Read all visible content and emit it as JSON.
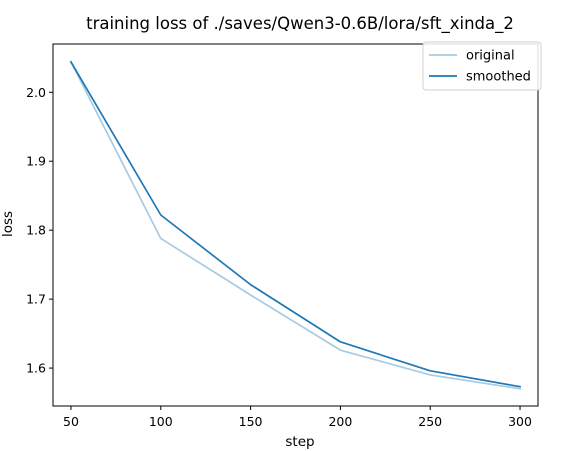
{
  "chart_data": {
    "type": "line",
    "title": "training loss of ./saves/Qwen3-0.6B/lora/sft_xinda_2",
    "xlabel": "step",
    "ylabel": "loss",
    "xlim": [
      40,
      310
    ],
    "ylim": [
      1.545,
      2.07
    ],
    "x_ticks": [
      50,
      100,
      150,
      200,
      250,
      300
    ],
    "y_ticks": [
      1.6,
      1.7,
      1.8,
      1.9,
      2.0
    ],
    "grid": false,
    "legend_position": "top-right",
    "series": [
      {
        "name": "original",
        "color": "#a6cbe3",
        "x": [
          50,
          100,
          150,
          200,
          250,
          300
        ],
        "y": [
          2.044,
          1.788,
          1.706,
          1.626,
          1.59,
          1.57
        ]
      },
      {
        "name": "smoothed",
        "color": "#1f77b4",
        "x": [
          50,
          100,
          150,
          200,
          250,
          300
        ],
        "y": [
          2.044,
          1.822,
          1.721,
          1.638,
          1.596,
          1.573
        ]
      }
    ]
  }
}
